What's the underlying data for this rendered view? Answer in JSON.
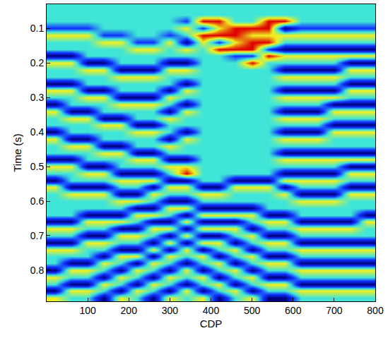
{
  "chart_data": {
    "type": "heatmap",
    "x_label": "CDP",
    "y_label": "Time (s)",
    "xlim": [
      0,
      800
    ],
    "xticks": [
      100,
      200,
      300,
      400,
      500,
      600,
      700,
      800
    ],
    "ylim": [
      0.03,
      0.89
    ],
    "yticks": [
      0.1,
      0.2,
      0.3,
      0.4,
      0.5,
      0.6,
      0.7,
      0.8
    ],
    "zlim": [
      -2,
      2
    ],
    "tick_labels": true,
    "x": [
      20,
      60,
      100,
      140,
      180,
      220,
      260,
      300,
      340,
      380,
      420,
      460,
      500,
      540,
      580,
      620,
      660,
      700,
      740,
      780
    ],
    "y": [
      0.04,
      0.06,
      0.08,
      0.1,
      0.12,
      0.14,
      0.16,
      0.18,
      0.2,
      0.22,
      0.24,
      0.26,
      0.28,
      0.3,
      0.32,
      0.34,
      0.36,
      0.38,
      0.4,
      0.42,
      0.44,
      0.46,
      0.48,
      0.5,
      0.52,
      0.54,
      0.56,
      0.58,
      0.6,
      0.62,
      0.64,
      0.66,
      0.68,
      0.7,
      0.72,
      0.74,
      0.76,
      0.78,
      0.8,
      0.82,
      0.84,
      0.86,
      0.88
    ],
    "z": [
      [
        0,
        0,
        0,
        0,
        0,
        0,
        0,
        0,
        0,
        0,
        0,
        0,
        0,
        0,
        0,
        0,
        0,
        0,
        0,
        0
      ],
      [
        0,
        0,
        0,
        0,
        0,
        0,
        0,
        0,
        0,
        0,
        0,
        0,
        0,
        0,
        0,
        0,
        0,
        0,
        0,
        0
      ],
      [
        0,
        0,
        0,
        0,
        0,
        0,
        0,
        0,
        -1,
        2,
        2,
        0,
        0,
        2,
        2,
        0,
        0,
        0,
        0,
        0
      ],
      [
        -1,
        -1,
        -1,
        0,
        0,
        0,
        0,
        0,
        1,
        -1,
        1,
        2,
        2,
        2,
        -2,
        -1,
        -1,
        -1,
        -1,
        -1
      ],
      [
        1,
        1,
        1,
        -1,
        -1,
        0,
        0,
        -1,
        0,
        2,
        2,
        2,
        1,
        1,
        1,
        1,
        1,
        1,
        1,
        1
      ],
      [
        0,
        0,
        0,
        1,
        1,
        -1,
        -1,
        1,
        -2,
        1,
        -1,
        1,
        2,
        2,
        0,
        0,
        0,
        0,
        0,
        0
      ],
      [
        0,
        0,
        0,
        0,
        0,
        1,
        1,
        0,
        1,
        0,
        2,
        2,
        2,
        -1,
        -2,
        -2,
        -2,
        -2,
        -2,
        -2
      ],
      [
        -2,
        -2,
        0,
        0,
        0,
        0,
        0,
        0,
        0,
        0,
        0,
        -1,
        -1,
        2,
        1,
        1,
        1,
        1,
        1,
        1
      ],
      [
        1,
        1,
        -2,
        -2,
        0,
        0,
        0,
        -2,
        -2,
        0,
        0,
        0,
        2,
        0,
        0,
        0,
        0,
        0,
        -2,
        -2
      ],
      [
        0,
        0,
        1,
        1,
        -2,
        -2,
        -2,
        1,
        1,
        0,
        0,
        0,
        0,
        0,
        -2,
        -2,
        -2,
        -2,
        1,
        1
      ],
      [
        0,
        0,
        0,
        0,
        1,
        1,
        1,
        0,
        0,
        0,
        0,
        0,
        0,
        0,
        1,
        1,
        1,
        1,
        0,
        0
      ],
      [
        -2,
        -2,
        0,
        0,
        0,
        0,
        0,
        0,
        -2,
        0,
        0,
        0,
        0,
        0,
        0,
        0,
        0,
        0,
        -2,
        -2
      ],
      [
        1,
        1,
        -2,
        -2,
        0,
        0,
        0,
        -2,
        1,
        0,
        0,
        0,
        0,
        0,
        -2,
        -2,
        -2,
        -2,
        1,
        1
      ],
      [
        0,
        0,
        1,
        1,
        -2,
        -2,
        -2,
        1,
        0,
        0,
        0,
        0,
        0,
        0,
        1,
        1,
        1,
        1,
        0,
        0
      ],
      [
        -2,
        0,
        0,
        0,
        1,
        1,
        1,
        0,
        -2,
        0,
        0,
        0,
        0,
        0,
        0,
        0,
        0,
        -2,
        -2,
        -2
      ],
      [
        1,
        -2,
        -2,
        0,
        0,
        0,
        0,
        -2,
        1,
        0,
        0,
        0,
        0,
        0,
        -2,
        -2,
        -2,
        1,
        1,
        1
      ],
      [
        0,
        1,
        1,
        -2,
        -2,
        0,
        0,
        1,
        0,
        0,
        0,
        0,
        0,
        0,
        1,
        1,
        1,
        0,
        0,
        0
      ],
      [
        0,
        0,
        0,
        1,
        1,
        -2,
        -2,
        0,
        0,
        0,
        0,
        0,
        0,
        0,
        0,
        0,
        0,
        -2,
        -2,
        -2
      ],
      [
        -2,
        0,
        0,
        0,
        0,
        1,
        1,
        0,
        -2,
        0,
        0,
        0,
        0,
        0,
        -2,
        -2,
        -2,
        1,
        1,
        1
      ],
      [
        1,
        -2,
        -2,
        0,
        0,
        0,
        0,
        -2,
        1,
        0,
        0,
        0,
        0,
        0,
        1,
        1,
        1,
        0,
        0,
        0
      ],
      [
        0,
        1,
        1,
        -2,
        -2,
        0,
        0,
        1,
        0,
        0,
        0,
        0,
        0,
        0,
        0,
        0,
        0,
        0,
        0,
        0
      ],
      [
        0,
        0,
        0,
        1,
        1,
        -2,
        -2,
        0,
        0,
        0,
        0,
        0,
        0,
        0,
        -2,
        -2,
        -2,
        -2,
        -2,
        -2
      ],
      [
        -2,
        -2,
        0,
        0,
        0,
        1,
        1,
        -2,
        -2,
        0,
        0,
        0,
        0,
        0,
        1,
        1,
        1,
        1,
        1,
        1
      ],
      [
        1,
        1,
        -2,
        -2,
        0,
        0,
        0,
        1,
        1,
        0,
        0,
        0,
        0,
        0,
        0,
        0,
        0,
        0,
        -2,
        -2
      ],
      [
        0,
        0,
        1,
        1,
        -2,
        -2,
        -2,
        0,
        2,
        0,
        0,
        0,
        0,
        0,
        -2,
        -2,
        -2,
        -2,
        1,
        1
      ],
      [
        -2,
        0,
        0,
        0,
        1,
        1,
        1,
        -2,
        -2,
        0,
        0,
        -2,
        -2,
        -2,
        1,
        1,
        1,
        1,
        0,
        0
      ],
      [
        1,
        -2,
        -2,
        -2,
        0,
        0,
        -2,
        1,
        1,
        -2,
        -2,
        1,
        1,
        1,
        -2,
        0,
        0,
        0,
        -2,
        -2
      ],
      [
        0,
        1,
        1,
        1,
        -2,
        -2,
        1,
        0,
        0,
        1,
        1,
        0,
        0,
        0,
        1,
        -2,
        -2,
        -2,
        1,
        1
      ],
      [
        0,
        0,
        0,
        0,
        1,
        1,
        0,
        -2,
        -2,
        0,
        0,
        0,
        0,
        0,
        0,
        1,
        1,
        1,
        0,
        0
      ],
      [
        0,
        0,
        0,
        0,
        0,
        -2,
        -2,
        1,
        1,
        -2,
        -2,
        -2,
        -2,
        0,
        0,
        0,
        0,
        0,
        0,
        0
      ],
      [
        0,
        0,
        -2,
        -2,
        -2,
        1,
        1,
        0,
        -2,
        1,
        1,
        1,
        1,
        -2,
        -2,
        0,
        0,
        0,
        0,
        -2
      ],
      [
        -2,
        -2,
        1,
        1,
        1,
        0,
        -2,
        -2,
        1,
        -2,
        -2,
        -2,
        0,
        1,
        1,
        -2,
        -2,
        -2,
        -2,
        1
      ],
      [
        1,
        1,
        0,
        0,
        -2,
        -2,
        1,
        1,
        -2,
        1,
        1,
        1,
        -2,
        0,
        0,
        1,
        1,
        1,
        1,
        0
      ],
      [
        0,
        0,
        -2,
        -2,
        1,
        1,
        0,
        -2,
        1,
        -2,
        -2,
        0,
        1,
        -2,
        -2,
        0,
        0,
        0,
        0,
        0
      ],
      [
        -2,
        -2,
        1,
        1,
        0,
        0,
        -2,
        1,
        -2,
        1,
        1,
        -2,
        0,
        1,
        1,
        -2,
        -2,
        -2,
        -2,
        -2
      ],
      [
        1,
        1,
        0,
        0,
        -2,
        -2,
        1,
        -2,
        1,
        -2,
        0,
        1,
        -2,
        0,
        0,
        1,
        1,
        1,
        1,
        1
      ],
      [
        0,
        0,
        0,
        -2,
        1,
        1,
        -2,
        1,
        0,
        1,
        -2,
        0,
        1,
        -2,
        -2,
        0,
        0,
        0,
        0,
        0
      ],
      [
        0,
        -2,
        -2,
        1,
        0,
        -2,
        1,
        0,
        -2,
        0,
        1,
        -2,
        0,
        1,
        1,
        -2,
        -2,
        -2,
        -2,
        -2
      ],
      [
        -2,
        1,
        1,
        0,
        -2,
        1,
        0,
        -2,
        1,
        -2,
        0,
        1,
        -2,
        0,
        0,
        1,
        1,
        1,
        1,
        1
      ],
      [
        1,
        0,
        0,
        -2,
        1,
        0,
        -2,
        1,
        0,
        1,
        -2,
        0,
        1,
        -2,
        -2,
        0,
        0,
        0,
        0,
        0
      ],
      [
        0,
        -2,
        -2,
        1,
        0,
        -2,
        1,
        0,
        -2,
        0,
        1,
        -2,
        0,
        1,
        1,
        -2,
        -2,
        -2,
        -2,
        -2
      ],
      [
        -2,
        1,
        1,
        0,
        -2,
        1,
        0,
        -2,
        1,
        -2,
        0,
        1,
        -2,
        0,
        0,
        1,
        1,
        1,
        1,
        1
      ],
      [
        1,
        0,
        0,
        -2,
        1,
        0,
        -2,
        1,
        0,
        1,
        -2,
        0,
        1,
        -2,
        -2,
        0,
        0,
        0,
        0,
        0
      ]
    ]
  }
}
